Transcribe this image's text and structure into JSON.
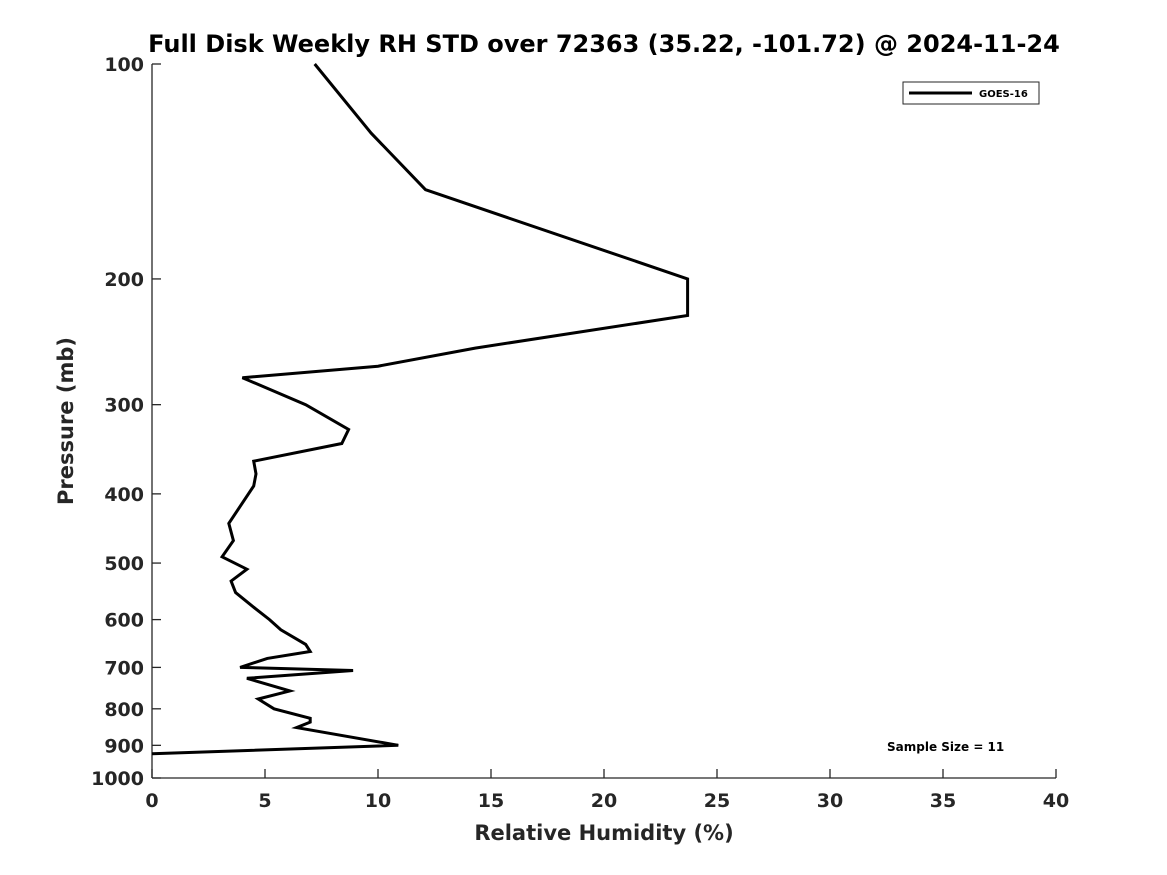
{
  "chart_data": {
    "type": "line",
    "title": "Full Disk Weekly RH STD over 72363 (35.22, -101.72) @ 2024-11-24",
    "xlabel": "Relative Humidity (%)",
    "ylabel": "Pressure (mb)",
    "xlim": [
      0,
      40
    ],
    "ylim": [
      100,
      1000
    ],
    "y_scale": "log",
    "y_reversed": true,
    "x_ticks": [
      0,
      5,
      10,
      15,
      20,
      25,
      30,
      35,
      40
    ],
    "y_ticks": [
      100,
      200,
      300,
      400,
      500,
      600,
      700,
      800,
      900,
      1000
    ],
    "legend_position": "top-right",
    "grid": false,
    "annotation": "Sample Size = 11",
    "series": [
      {
        "name": "GOES-16",
        "color": "#000000",
        "points": [
          [
            7.2,
            100
          ],
          [
            9.7,
            125
          ],
          [
            12.1,
            150
          ],
          [
            23.7,
            200
          ],
          [
            23.7,
            225
          ],
          [
            14.3,
            250
          ],
          [
            10.0,
            265
          ],
          [
            4.0,
            275
          ],
          [
            6.8,
            300
          ],
          [
            8.7,
            325
          ],
          [
            8.4,
            340
          ],
          [
            4.5,
            360
          ],
          [
            4.6,
            375
          ],
          [
            4.5,
            390
          ],
          [
            3.4,
            440
          ],
          [
            3.6,
            465
          ],
          [
            3.1,
            490
          ],
          [
            4.2,
            510
          ],
          [
            3.5,
            530
          ],
          [
            3.7,
            550
          ],
          [
            4.6,
            580
          ],
          [
            5.2,
            600
          ],
          [
            5.7,
            620
          ],
          [
            6.8,
            650
          ],
          [
            7.0,
            665
          ],
          [
            5.1,
            680
          ],
          [
            3.9,
            700
          ],
          [
            8.9,
            707
          ],
          [
            4.2,
            725
          ],
          [
            6.1,
            755
          ],
          [
            4.7,
            775
          ],
          [
            5.4,
            800
          ],
          [
            7.0,
            825
          ],
          [
            7.0,
            835
          ],
          [
            6.4,
            850
          ],
          [
            10.9,
            900
          ],
          [
            0.0,
            925
          ]
        ]
      }
    ]
  }
}
